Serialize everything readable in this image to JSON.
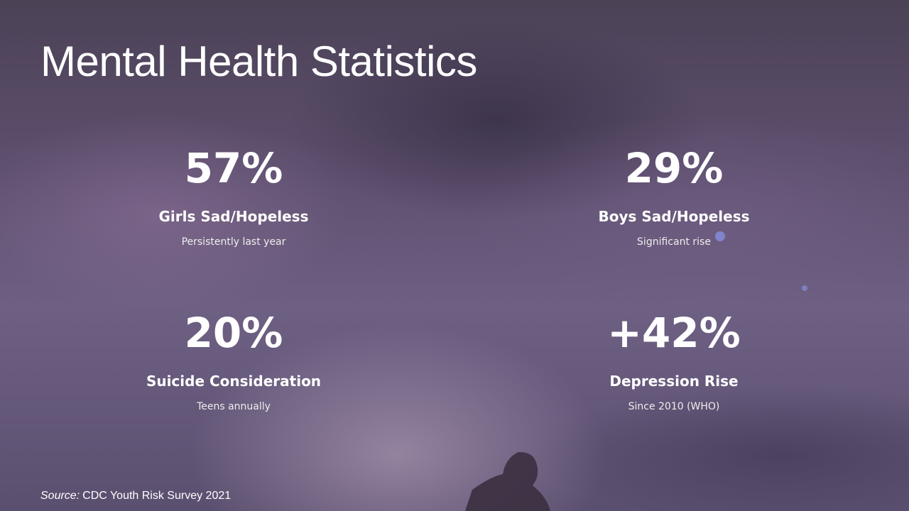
{
  "title": "Mental Health Statistics",
  "stats": [
    {
      "value": "57%",
      "label": "Girls Sad/Hopeless",
      "description": "Persistently last year"
    },
    {
      "value": "29%",
      "label": "Boys Sad/Hopeless",
      "description": "Significant rise"
    },
    {
      "value": "20%",
      "label": "Suicide Consideration",
      "description": "Teens annually"
    },
    {
      "value": "+42%",
      "label": "Depression Rise",
      "description": "Since 2010 (WHO)"
    }
  ],
  "source": {
    "prefix": "Source:",
    "text": "CDC Youth Risk Survey 2021"
  }
}
